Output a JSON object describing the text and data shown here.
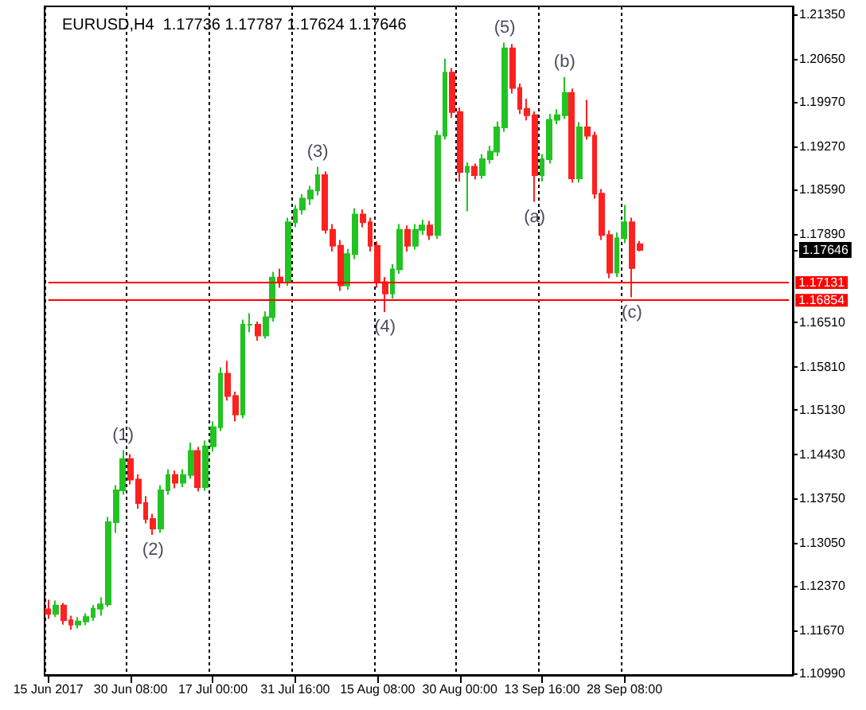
{
  "chart_data": {
    "type": "candlestick",
    "title": "EURUSD,H4  1.17736 1.17787 1.17624 1.17646",
    "categories": [
      "15 Jun 2017",
      null,
      null,
      null,
      null,
      null,
      null,
      null,
      null,
      null,
      null,
      "30 Jun 08:00",
      null,
      null,
      null,
      null,
      null,
      null,
      null,
      null,
      null,
      null,
      "17 Jul 00:00",
      null,
      null,
      null,
      null,
      null,
      null,
      null,
      null,
      null,
      null,
      "31 Jul 16:00",
      null,
      null,
      null,
      null,
      null,
      null,
      null,
      null,
      null,
      null,
      "15 Aug 08:00",
      null,
      null,
      null,
      null,
      null,
      null,
      null,
      null,
      null,
      null,
      "30 Aug 00:00",
      null,
      null,
      null,
      null,
      null,
      null,
      null,
      null,
      null,
      null,
      "13 Sep 16:00",
      null,
      null,
      null,
      null,
      null,
      null,
      null,
      null,
      null,
      null,
      "28 Sep 08:00",
      null,
      null,
      null,
      null,
      null,
      null,
      null,
      null,
      null,
      null,
      null,
      null,
      null,
      null,
      null,
      null,
      null,
      null,
      null,
      null,
      null,
      null
    ],
    "ohlc": [
      [
        1.12,
        1.1215,
        1.1185,
        1.1193
      ],
      [
        1.1193,
        1.1214,
        1.1188,
        1.1206
      ],
      [
        1.1206,
        1.121,
        1.1176,
        1.1183
      ],
      [
        1.1183,
        1.119,
        1.1168,
        1.1176
      ],
      [
        1.1176,
        1.1188,
        1.117,
        1.1181
      ],
      [
        1.1181,
        1.1194,
        1.1175,
        1.1188
      ],
      [
        1.1188,
        1.1207,
        1.1182,
        1.1201
      ],
      [
        1.1201,
        1.1219,
        1.119,
        1.1208
      ],
      [
        1.1208,
        1.1345,
        1.1204,
        1.1337
      ],
      [
        1.1337,
        1.1395,
        1.132,
        1.1387
      ],
      [
        1.1387,
        1.145,
        1.138,
        1.1436
      ],
      [
        1.1436,
        1.1444,
        1.1396,
        1.1404
      ],
      [
        1.1404,
        1.1412,
        1.1358,
        1.1367
      ],
      [
        1.1367,
        1.1378,
        1.1335,
        1.1342
      ],
      [
        1.1342,
        1.135,
        1.1317,
        1.1327
      ],
      [
        1.1327,
        1.1395,
        1.132,
        1.1387
      ],
      [
        1.1387,
        1.142,
        1.138,
        1.1411
      ],
      [
        1.1411,
        1.1418,
        1.139,
        1.1399
      ],
      [
        1.1399,
        1.142,
        1.1392,
        1.1411
      ],
      [
        1.1411,
        1.1462,
        1.1405,
        1.1449
      ],
      [
        1.1449,
        1.1455,
        1.1385,
        1.1392
      ],
      [
        1.1392,
        1.1465,
        1.1386,
        1.1456
      ],
      [
        1.1456,
        1.1495,
        1.1448,
        1.1486
      ],
      [
        1.1486,
        1.158,
        1.148,
        1.157
      ],
      [
        1.157,
        1.159,
        1.1528,
        1.1535
      ],
      [
        1.1535,
        1.1542,
        1.1495,
        1.1506
      ],
      [
        1.1506,
        1.1655,
        1.15,
        1.1647
      ],
      [
        1.1647,
        1.1665,
        1.1635,
        1.1647
      ],
      [
        1.1647,
        1.1652,
        1.1622,
        1.163
      ],
      [
        1.163,
        1.1668,
        1.1625,
        1.1659
      ],
      [
        1.1659,
        1.173,
        1.1652,
        1.1721
      ],
      [
        1.1721,
        1.1735,
        1.1705,
        1.1714
      ],
      [
        1.1714,
        1.1815,
        1.1708,
        1.1808
      ],
      [
        1.1808,
        1.1835,
        1.18,
        1.1828
      ],
      [
        1.1828,
        1.1852,
        1.182,
        1.1845
      ],
      [
        1.1845,
        1.1865,
        1.1835,
        1.1858
      ],
      [
        1.1858,
        1.1895,
        1.185,
        1.1882
      ],
      [
        1.1882,
        1.1888,
        1.179,
        1.1796
      ],
      [
        1.1796,
        1.1805,
        1.1762,
        1.1771
      ],
      [
        1.1771,
        1.178,
        1.17,
        1.1709
      ],
      [
        1.1709,
        1.1766,
        1.1702,
        1.1758
      ],
      [
        1.1758,
        1.183,
        1.175,
        1.182
      ],
      [
        1.182,
        1.1828,
        1.18,
        1.1808
      ],
      [
        1.1808,
        1.1815,
        1.1762,
        1.1771
      ],
      [
        1.1771,
        1.1778,
        1.1705,
        1.1714
      ],
      [
        1.1714,
        1.1722,
        1.1667,
        1.1696
      ],
      [
        1.1696,
        1.1742,
        1.1688,
        1.1734
      ],
      [
        1.1734,
        1.1805,
        1.1727,
        1.1796
      ],
      [
        1.1796,
        1.1803,
        1.1762,
        1.1771
      ],
      [
        1.1771,
        1.1805,
        1.1765,
        1.1796
      ],
      [
        1.1796,
        1.1812,
        1.1788,
        1.1803
      ],
      [
        1.1803,
        1.181,
        1.178,
        1.1788
      ],
      [
        1.1788,
        1.1952,
        1.1782,
        1.1944
      ],
      [
        1.1944,
        1.2065,
        1.1938,
        1.2043
      ],
      [
        1.2043,
        1.205,
        1.1972,
        1.1981
      ],
      [
        1.1981,
        1.1988,
        1.1872,
        1.1887
      ],
      [
        1.1887,
        1.1902,
        1.1825,
        1.1895
      ],
      [
        1.1895,
        1.19,
        1.1875,
        1.1882
      ],
      [
        1.1882,
        1.1915,
        1.1876,
        1.1907
      ],
      [
        1.1907,
        1.1928,
        1.19,
        1.1919
      ],
      [
        1.1919,
        1.1966,
        1.1912,
        1.1957
      ],
      [
        1.1957,
        1.209,
        1.195,
        1.2081
      ],
      [
        1.2081,
        1.2088,
        1.201,
        1.2019
      ],
      [
        1.2019,
        1.2026,
        1.1978,
        1.1986
      ],
      [
        1.1986,
        1.2002,
        1.1968,
        1.1976
      ],
      [
        1.1976,
        1.1982,
        1.184,
        1.1882
      ],
      [
        1.1882,
        1.1915,
        1.1872,
        1.1907
      ],
      [
        1.1907,
        1.1978,
        1.19,
        1.1969
      ],
      [
        1.1969,
        1.1985,
        1.1962,
        1.1976
      ],
      [
        1.1976,
        1.2036,
        1.197,
        1.2011
      ],
      [
        1.2011,
        1.2018,
        1.187,
        1.1877
      ],
      [
        1.1877,
        1.1965,
        1.187,
        1.1957
      ],
      [
        1.1957,
        1.2,
        1.1938,
        1.1944
      ],
      [
        1.1944,
        1.195,
        1.1845,
        1.1853
      ],
      [
        1.1853,
        1.186,
        1.178,
        1.1788
      ],
      [
        1.1788,
        1.1795,
        1.172,
        1.1729
      ],
      [
        1.1729,
        1.1792,
        1.1722,
        1.1783
      ],
      [
        1.1783,
        1.1835,
        1.1775,
        1.1808
      ],
      [
        1.1808,
        1.1815,
        1.169,
        1.1736
      ],
      [
        1.17736,
        1.17787,
        1.17624,
        1.17646
      ],
      null,
      null,
      null,
      null,
      null,
      null,
      null,
      null,
      null,
      null,
      null,
      null,
      null,
      null,
      null,
      null,
      null,
      null,
      null,
      null
    ],
    "ylim": [
      1.1097,
      1.2147
    ],
    "yticks": [
      {
        "value": 1.2135,
        "label": "1.21350"
      },
      {
        "value": 1.2065,
        "label": "1.20650"
      },
      {
        "value": 1.1997,
        "label": "1.19970"
      },
      {
        "value": 1.1927,
        "label": "1.19270"
      },
      {
        "value": 1.1859,
        "label": "1.18590"
      },
      {
        "value": 1.1789,
        "label": "1.17890"
      },
      {
        "value": 1.17646,
        "label": "1.17646"
      },
      {
        "value": 1.1651,
        "label": "1.16510"
      },
      {
        "value": 1.1581,
        "label": "1.15810"
      },
      {
        "value": 1.1513,
        "label": "1.15130"
      },
      {
        "value": 1.1443,
        "label": "1.14430"
      },
      {
        "value": 1.1375,
        "label": "1.13750"
      },
      {
        "value": 1.1305,
        "label": "1.13050"
      },
      {
        "value": 1.1237,
        "label": "1.12370"
      },
      {
        "value": 1.1167,
        "label": "1.11670"
      },
      {
        "value": 1.1099,
        "label": "1.10990"
      }
    ],
    "grid": "x",
    "ref_lines": [
      {
        "axis": "y",
        "value": 1.17131,
        "label": "1.17131",
        "color": "#ff0000"
      },
      {
        "axis": "y",
        "value": 1.16854,
        "label": "1.16854",
        "color": "#ff0000"
      }
    ],
    "annotations": [
      {
        "text": "(1)",
        "y": 1.145
      },
      {
        "text": "(2)",
        "y": 1.1317
      },
      {
        "text": "(3)",
        "y": 1.1895
      },
      {
        "text": "(4)",
        "y": 1.1667
      },
      {
        "text": "(5)",
        "y": 1.209
      },
      {
        "text": "(a)",
        "y": 1.184
      },
      {
        "text": "(b)",
        "y": 1.2036
      },
      {
        "text": "(c)",
        "y": 1.169
      }
    ]
  }
}
